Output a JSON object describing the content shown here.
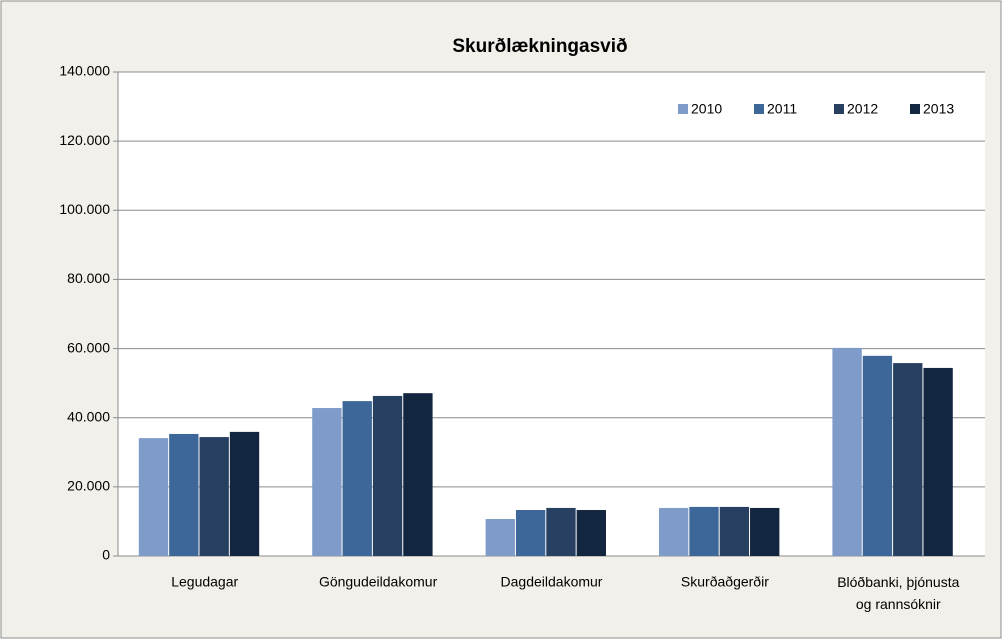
{
  "chart_data": {
    "type": "bar",
    "title": "Skurðlækningasvið",
    "categories": [
      "Legudagar",
      "Göngudeildakomur",
      "Dagdeildakomur",
      "Skurðaðgerðir",
      "Blóðbanki, þjónusta og rannsóknir"
    ],
    "series": [
      {
        "name": "2010",
        "color": "#7f9bc9",
        "values": [
          34100,
          42800,
          10700,
          13900,
          60200
        ]
      },
      {
        "name": "2011",
        "color": "#3d6699",
        "values": [
          35300,
          44800,
          13300,
          14200,
          57900
        ]
      },
      {
        "name": "2012",
        "color": "#273f61",
        "values": [
          34400,
          46300,
          13900,
          14200,
          55800
        ]
      },
      {
        "name": "2013",
        "color": "#13263f",
        "values": [
          35900,
          47100,
          13300,
          13900,
          54400
        ]
      }
    ],
    "ylim": [
      0,
      140000
    ],
    "yticks": [
      0,
      {
        "value": 20000,
        "label": "20.000"
      },
      {
        "value": 40000,
        "label": "40.000"
      },
      {
        "value": 60000,
        "label": "60.000"
      },
      {
        "value": 80000,
        "label": "80.000"
      },
      {
        "value": 100000,
        "label": "100.000"
      },
      {
        "value": 120000,
        "label": "120.000"
      },
      {
        "value": 140000,
        "label": "140.000"
      }
    ],
    "grid": true,
    "legend": "top-right"
  }
}
